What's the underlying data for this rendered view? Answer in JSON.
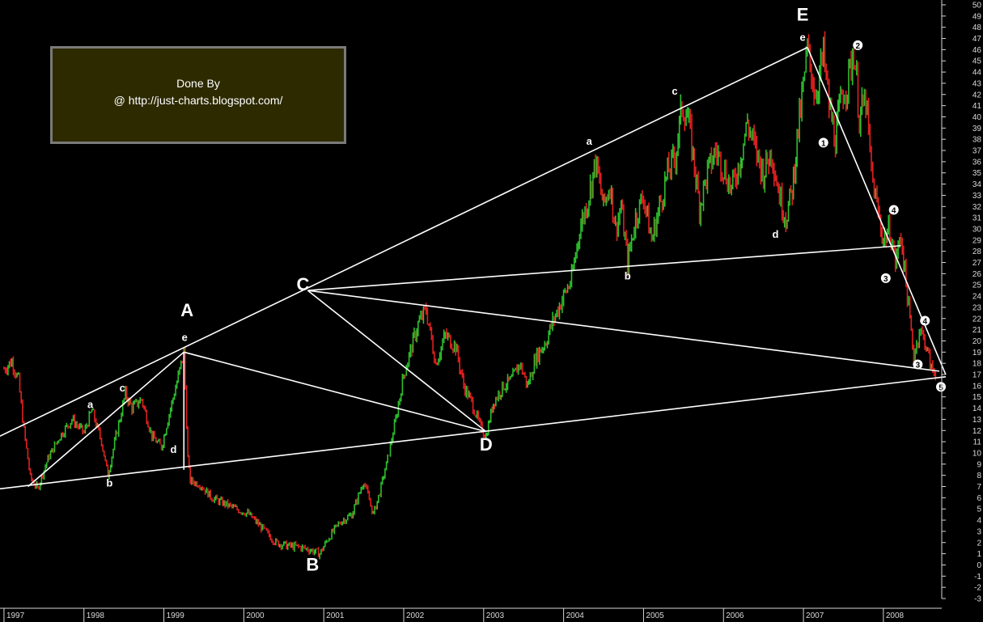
{
  "credit": {
    "line1": "Done By",
    "line2": "@ http://just-charts.blogspot.com/"
  },
  "colors": {
    "background": "#000000",
    "up": "#2dbf2d",
    "down": "#e02020",
    "lines": "#ffffff",
    "axis": "#d8d8d8",
    "credit_bg": "#2d2a00",
    "credit_border": "#7a7a7a"
  },
  "chart_data": {
    "type": "line",
    "title": "",
    "xlabel": "",
    "ylabel": "",
    "x_ticks": [
      "1997",
      "1998",
      "1999",
      "2000",
      "2001",
      "2002",
      "2003",
      "2004",
      "2005",
      "2006",
      "2007",
      "2008"
    ],
    "ylim": [
      -3,
      50
    ],
    "y_ticks": [
      -3,
      -2,
      -1,
      0,
      1,
      2,
      3,
      4,
      5,
      6,
      7,
      8,
      9,
      10,
      11,
      12,
      13,
      14,
      15,
      16,
      17,
      18,
      19,
      20,
      21,
      22,
      23,
      24,
      25,
      26,
      27,
      28,
      29,
      30,
      31,
      32,
      33,
      34,
      35,
      36,
      37,
      38,
      39,
      40,
      41,
      42,
      43,
      44,
      45,
      46,
      47,
      48,
      49,
      50
    ],
    "grid": false,
    "series": [
      {
        "values": [
          [
            1997.0,
            17.5
          ],
          [
            1997.1,
            18.2
          ],
          [
            1997.18,
            16.5
          ],
          [
            1997.25,
            12.0
          ],
          [
            1997.33,
            7.8
          ],
          [
            1997.42,
            6.8
          ],
          [
            1997.55,
            9.5
          ],
          [
            1997.7,
            11.5
          ],
          [
            1997.85,
            13.0
          ],
          [
            1998.0,
            11.8
          ],
          [
            1998.1,
            13.8
          ],
          [
            1998.22,
            11.0
          ],
          [
            1998.3,
            8.0
          ],
          [
            1998.4,
            11.5
          ],
          [
            1998.52,
            15.3
          ],
          [
            1998.6,
            14.0
          ],
          [
            1998.72,
            14.8
          ],
          [
            1998.85,
            11.5
          ],
          [
            1998.97,
            10.5
          ],
          [
            1999.05,
            13.0
          ],
          [
            1999.18,
            16.8
          ],
          [
            1999.25,
            19.0
          ],
          [
            1999.3,
            9.5
          ],
          [
            1999.33,
            7.5
          ],
          [
            1999.45,
            7.2
          ],
          [
            1999.6,
            6.0
          ],
          [
            1999.75,
            5.5
          ],
          [
            1999.9,
            5.0
          ],
          [
            2000.05,
            4.6
          ],
          [
            2000.2,
            3.5
          ],
          [
            2000.4,
            2.0
          ],
          [
            2000.55,
            1.7
          ],
          [
            2000.7,
            1.6
          ],
          [
            2000.85,
            1.3
          ],
          [
            2000.95,
            1.0
          ],
          [
            2001.05,
            2.3
          ],
          [
            2001.2,
            3.8
          ],
          [
            2001.35,
            4.5
          ],
          [
            2001.5,
            7.5
          ],
          [
            2001.62,
            4.5
          ],
          [
            2001.7,
            6.5
          ],
          [
            2001.8,
            9.5
          ],
          [
            2001.9,
            13.0
          ],
          [
            2002.0,
            17.0
          ],
          [
            2002.1,
            19.5
          ],
          [
            2002.18,
            21.5
          ],
          [
            2002.28,
            22.8
          ],
          [
            2002.4,
            18.0
          ],
          [
            2002.52,
            20.5
          ],
          [
            2002.65,
            19.5
          ],
          [
            2002.75,
            16.0
          ],
          [
            2002.85,
            14.5
          ],
          [
            2002.95,
            12.5
          ],
          [
            2003.03,
            11.5
          ],
          [
            2003.12,
            14.5
          ],
          [
            2003.25,
            16.0
          ],
          [
            2003.35,
            16.5
          ],
          [
            2003.45,
            18.0
          ],
          [
            2003.55,
            16.0
          ],
          [
            2003.65,
            18.5
          ],
          [
            2003.78,
            20.0
          ],
          [
            2003.88,
            22.0
          ],
          [
            2004.0,
            24.0
          ],
          [
            2004.1,
            25.5
          ],
          [
            2004.2,
            30.0
          ],
          [
            2004.3,
            32.5
          ],
          [
            2004.4,
            36.0
          ],
          [
            2004.5,
            32.0
          ],
          [
            2004.58,
            34.0
          ],
          [
            2004.65,
            30.0
          ],
          [
            2004.72,
            32.0
          ],
          [
            2004.8,
            27.0
          ],
          [
            2004.9,
            31.0
          ],
          [
            2005.0,
            33.0
          ],
          [
            2005.1,
            29.0
          ],
          [
            2005.2,
            32.0
          ],
          [
            2005.3,
            35.0
          ],
          [
            2005.4,
            36.5
          ],
          [
            2005.48,
            41.0
          ],
          [
            2005.55,
            40.0
          ],
          [
            2005.62,
            36.5
          ],
          [
            2005.7,
            32.0
          ],
          [
            2005.8,
            35.0
          ],
          [
            2005.9,
            37.0
          ],
          [
            2006.0,
            35.5
          ],
          [
            2006.1,
            33.5
          ],
          [
            2006.2,
            36.0
          ],
          [
            2006.3,
            39.5
          ],
          [
            2006.4,
            37.0
          ],
          [
            2006.5,
            35.0
          ],
          [
            2006.6,
            37.0
          ],
          [
            2006.7,
            33.0
          ],
          [
            2006.78,
            31.0
          ],
          [
            2006.86,
            33.5
          ],
          [
            2006.92,
            38.0
          ],
          [
            2006.98,
            41.5
          ],
          [
            2007.05,
            46.0
          ],
          [
            2007.15,
            42.0
          ],
          [
            2007.25,
            45.5
          ],
          [
            2007.32,
            41.0
          ],
          [
            2007.4,
            38.0
          ],
          [
            2007.48,
            42.0
          ],
          [
            2007.55,
            43.0
          ],
          [
            2007.63,
            46.0
          ],
          [
            2007.7,
            40.0
          ],
          [
            2007.78,
            41.5
          ],
          [
            2007.85,
            35.0
          ],
          [
            2007.92,
            32.0
          ],
          [
            2008.0,
            29.0
          ],
          [
            2008.08,
            30.0
          ],
          [
            2008.15,
            27.0
          ],
          [
            2008.22,
            29.5
          ],
          [
            2008.3,
            24.0
          ],
          [
            2008.38,
            18.5
          ],
          [
            2008.45,
            21.0
          ],
          [
            2008.52,
            20.0
          ],
          [
            2008.6,
            17.5
          ],
          [
            2008.67,
            17.0
          ]
        ]
      }
    ],
    "trendlines": [
      [
        [
          1996.95,
          11.5
        ],
        [
          2007.05,
          46.2
        ]
      ],
      [
        [
          1996.95,
          6.8
        ],
        [
          2008.78,
          16.8
        ]
      ],
      [
        [
          1997.3,
          7.0
        ],
        [
          1999.25,
          19.0
        ]
      ],
      [
        [
          1999.25,
          19.0
        ],
        [
          1999.25,
          8.5
        ]
      ],
      [
        [
          1999.25,
          19.0
        ],
        [
          2003.03,
          11.9
        ]
      ],
      [
        [
          2000.8,
          24.5
        ],
        [
          2003.03,
          11.9
        ]
      ],
      [
        [
          2000.8,
          24.5
        ],
        [
          2008.7,
          17.3
        ]
      ],
      [
        [
          2000.8,
          24.5
        ],
        [
          2008.22,
          28.5
        ]
      ],
      [
        [
          2007.05,
          46.2
        ],
        [
          2008.78,
          17.0
        ]
      ]
    ],
    "annotations": [
      {
        "text": "A",
        "x": 1999.29,
        "y": 22.2,
        "size": "large"
      },
      {
        "text": "B",
        "x": 2000.86,
        "y": -0.5,
        "size": "large"
      },
      {
        "text": "C",
        "x": 2000.74,
        "y": 24.5,
        "size": "large"
      },
      {
        "text": "D",
        "x": 2003.03,
        "y": 10.2,
        "size": "large"
      },
      {
        "text": "E",
        "x": 2006.99,
        "y": 48.6,
        "size": "large"
      },
      {
        "text": "a",
        "x": 1998.08,
        "y": 14.0,
        "size": "small"
      },
      {
        "text": "b",
        "x": 1998.32,
        "y": 7.0,
        "size": "small"
      },
      {
        "text": "c",
        "x": 1998.48,
        "y": 15.5,
        "size": "small"
      },
      {
        "text": "d",
        "x": 1999.12,
        "y": 10.0,
        "size": "small"
      },
      {
        "text": "e",
        "x": 1999.26,
        "y": 20.0,
        "size": "small"
      },
      {
        "text": "a",
        "x": 2004.32,
        "y": 37.5,
        "size": "small"
      },
      {
        "text": "b",
        "x": 2004.8,
        "y": 25.5,
        "size": "small"
      },
      {
        "text": "c",
        "x": 2005.39,
        "y": 42.0,
        "size": "small"
      },
      {
        "text": "d",
        "x": 2006.65,
        "y": 29.2,
        "size": "small"
      },
      {
        "text": "e",
        "x": 2006.99,
        "y": 46.8,
        "size": "small"
      }
    ],
    "wave_markers": [
      {
        "text": "1",
        "x": 2007.25,
        "y": 37.7
      },
      {
        "text": "2",
        "x": 2007.68,
        "y": 46.4
      },
      {
        "text": "3",
        "x": 2008.03,
        "y": 25.6
      },
      {
        "text": "4",
        "x": 2008.13,
        "y": 31.7
      },
      {
        "text": "4",
        "x": 2008.52,
        "y": 21.8
      },
      {
        "text": "3",
        "x": 2008.43,
        "y": 17.9
      },
      {
        "text": "5",
        "x": 2008.72,
        "y": 15.9
      }
    ]
  }
}
